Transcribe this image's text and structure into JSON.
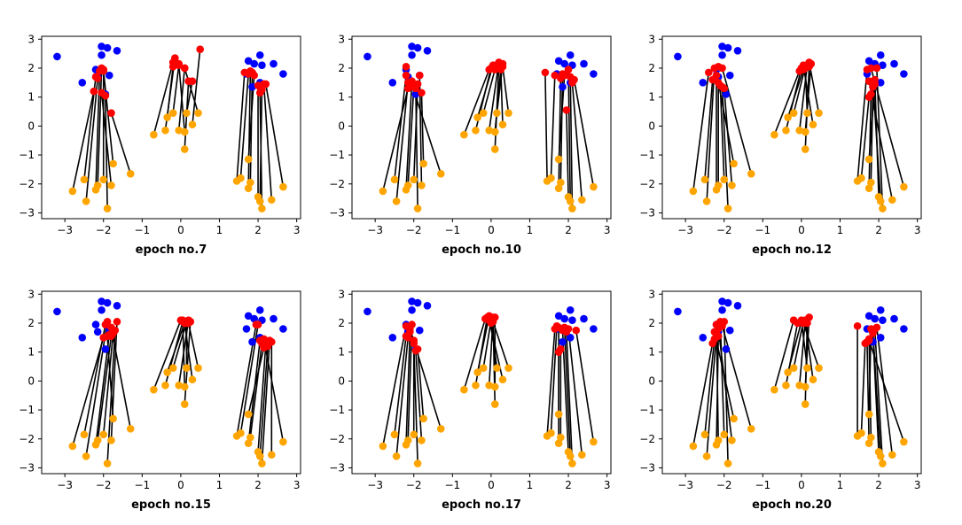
{
  "colors": {
    "source": "#0000ff",
    "start": "#ffa500",
    "moved": "#ff0000",
    "link": "#000000"
  },
  "chart_data": {
    "type": "scatter",
    "xlim": [
      -3.6,
      3.1
    ],
    "ylim": [
      -3.2,
      3.1
    ],
    "xticks": [
      -3,
      -2,
      -1,
      0,
      1,
      2,
      3
    ],
    "yticks": [
      -3,
      -2,
      -1,
      0,
      1,
      2,
      3
    ],
    "source_points": [
      [
        -3.2,
        2.4
      ],
      [
        -2.55,
        1.5
      ],
      [
        -2.2,
        1.95
      ],
      [
        -2.05,
        2.75
      ],
      [
        -1.9,
        2.7
      ],
      [
        -1.65,
        2.6
      ],
      [
        -2.05,
        2.45
      ],
      [
        -1.95,
        1.1
      ],
      [
        -1.85,
        1.75
      ],
      [
        -2.15,
        1.7
      ],
      [
        1.7,
        1.8
      ],
      [
        1.75,
        2.25
      ],
      [
        1.9,
        2.15
      ],
      [
        2.05,
        2.45
      ],
      [
        2.1,
        2.1
      ],
      [
        2.4,
        2.15
      ],
      [
        2.65,
        1.8
      ],
      [
        1.85,
        1.35
      ],
      [
        2.05,
        1.5
      ]
    ],
    "start_points": [
      [
        -2.8,
        -2.25
      ],
      [
        -2.5,
        -1.85
      ],
      [
        -2.45,
        -2.6
      ],
      [
        -2.2,
        -2.2
      ],
      [
        -2.15,
        -2.05
      ],
      [
        -2.0,
        -1.85
      ],
      [
        -1.9,
        -2.85
      ],
      [
        -1.8,
        -2.05
      ],
      [
        -1.75,
        -1.3
      ],
      [
        -1.3,
        -1.65
      ],
      [
        -0.7,
        -0.3
      ],
      [
        -0.4,
        -0.15
      ],
      [
        -0.35,
        0.3
      ],
      [
        -0.2,
        0.45
      ],
      [
        -0.05,
        -0.15
      ],
      [
        0.1,
        -0.8
      ],
      [
        0.1,
        -0.2
      ],
      [
        0.15,
        0.45
      ],
      [
        0.3,
        0.05
      ],
      [
        0.45,
        0.45
      ],
      [
        1.45,
        -1.9
      ],
      [
        1.55,
        -1.8
      ],
      [
        1.75,
        -2.15
      ],
      [
        1.8,
        -1.95
      ],
      [
        1.75,
        -1.15
      ],
      [
        2.0,
        -2.45
      ],
      [
        2.05,
        -2.6
      ],
      [
        2.1,
        -2.85
      ],
      [
        2.35,
        -2.55
      ],
      [
        2.65,
        -2.1
      ]
    ],
    "subplots": [
      {
        "title": "epoch no.7",
        "moved_points": [
          [
            -2.25,
            1.2
          ],
          [
            -2.2,
            1.7
          ],
          [
            -2.15,
            1.65
          ],
          [
            -2.1,
            1.9
          ],
          [
            -2.05,
            2.0
          ],
          [
            -2.0,
            1.95
          ],
          [
            -1.95,
            1.05
          ],
          [
            -2.05,
            1.15
          ],
          [
            -2.0,
            1.9
          ],
          [
            -1.8,
            0.45
          ],
          [
            -0.2,
            2.2
          ],
          [
            -0.15,
            2.35
          ],
          [
            -0.2,
            2.05
          ],
          [
            -0.05,
            2.1
          ],
          [
            0.1,
            2.0
          ],
          [
            0.2,
            1.55
          ],
          [
            -0.05,
            2.15
          ],
          [
            0.3,
            1.55
          ],
          [
            0.5,
            2.65
          ],
          [
            0.1,
            2.0
          ],
          [
            1.65,
            1.85
          ],
          [
            1.75,
            1.8
          ],
          [
            1.8,
            1.9
          ],
          [
            1.85,
            1.85
          ],
          [
            1.9,
            1.75
          ],
          [
            2.0,
            1.4
          ],
          [
            2.1,
            1.25
          ],
          [
            2.05,
            1.15
          ],
          [
            2.15,
            1.45
          ],
          [
            2.2,
            1.45
          ]
        ]
      },
      {
        "title": "epoch no.10",
        "moved_points": [
          [
            -2.15,
            1.3
          ],
          [
            -2.2,
            1.75
          ],
          [
            -2.15,
            1.5
          ],
          [
            -2.05,
            1.55
          ],
          [
            -2.0,
            1.35
          ],
          [
            -1.9,
            1.45
          ],
          [
            -1.95,
            1.3
          ],
          [
            -1.85,
            1.75
          ],
          [
            -1.8,
            1.15
          ],
          [
            -2.2,
            2.05
          ],
          [
            -0.05,
            1.95
          ],
          [
            0.0,
            2.0
          ],
          [
            0.05,
            2.1
          ],
          [
            0.1,
            1.95
          ],
          [
            0.2,
            2.2
          ],
          [
            0.2,
            2.05
          ],
          [
            0.25,
            1.95
          ],
          [
            0.3,
            2.15
          ],
          [
            0.25,
            2.0
          ],
          [
            0.3,
            2.05
          ],
          [
            1.4,
            1.85
          ],
          [
            1.65,
            1.75
          ],
          [
            1.8,
            1.65
          ],
          [
            1.85,
            1.8
          ],
          [
            1.9,
            1.75
          ],
          [
            1.95,
            0.55
          ],
          [
            2.0,
            1.95
          ],
          [
            2.05,
            1.7
          ],
          [
            2.1,
            1.5
          ],
          [
            2.15,
            1.6
          ]
        ]
      },
      {
        "title": "epoch no.12",
        "moved_points": [
          [
            -2.4,
            1.85
          ],
          [
            -2.3,
            1.6
          ],
          [
            -2.25,
            2.0
          ],
          [
            -2.2,
            1.75
          ],
          [
            -2.15,
            2.05
          ],
          [
            -2.1,
            1.4
          ],
          [
            -2.05,
            1.35
          ],
          [
            -2.0,
            1.3
          ],
          [
            -2.15,
            1.5
          ],
          [
            -2.05,
            2.0
          ],
          [
            -0.05,
            1.9
          ],
          [
            0.0,
            2.0
          ],
          [
            0.05,
            1.95
          ],
          [
            0.1,
            2.05
          ],
          [
            0.15,
            2.1
          ],
          [
            0.2,
            2.05
          ],
          [
            0.25,
            2.15
          ],
          [
            0.1,
            2.0
          ],
          [
            0.05,
            2.1
          ],
          [
            0.2,
            2.2
          ],
          [
            1.7,
            1.95
          ],
          [
            1.75,
            1.0
          ],
          [
            1.8,
            1.1
          ],
          [
            1.85,
            1.35
          ],
          [
            1.9,
            1.45
          ],
          [
            1.9,
            1.6
          ],
          [
            1.85,
            1.55
          ],
          [
            1.95,
            2.0
          ],
          [
            1.75,
            1.55
          ],
          [
            1.8,
            2.0
          ]
        ]
      },
      {
        "title": "epoch no.15",
        "moved_points": [
          [
            -2.0,
            1.5
          ],
          [
            -1.95,
            1.95
          ],
          [
            -1.9,
            2.05
          ],
          [
            -1.85,
            1.6
          ],
          [
            -1.8,
            1.55
          ],
          [
            -1.75,
            1.65
          ],
          [
            -1.7,
            1.75
          ],
          [
            -1.65,
            2.05
          ],
          [
            -1.9,
            1.55
          ],
          [
            -1.8,
            1.85
          ],
          [
            0.0,
            2.1
          ],
          [
            0.05,
            2.05
          ],
          [
            0.1,
            2.0
          ],
          [
            0.15,
            2.05
          ],
          [
            0.2,
            2.1
          ],
          [
            0.25,
            2.05
          ],
          [
            0.05,
            2.1
          ],
          [
            0.15,
            2.0
          ],
          [
            0.1,
            2.0
          ],
          [
            0.2,
            2.0
          ],
          [
            1.95,
            1.95
          ],
          [
            2.0,
            1.95
          ],
          [
            2.05,
            1.4
          ],
          [
            2.1,
            1.3
          ],
          [
            2.15,
            1.15
          ],
          [
            2.2,
            1.25
          ],
          [
            2.25,
            1.2
          ],
          [
            2.3,
            1.4
          ],
          [
            2.35,
            1.35
          ],
          [
            2.15,
            1.45
          ]
        ]
      },
      {
        "title": "epoch no.17",
        "moved_points": [
          [
            -2.2,
            1.9
          ],
          [
            -2.2,
            1.55
          ],
          [
            -2.15,
            1.5
          ],
          [
            -2.1,
            1.7
          ],
          [
            -2.05,
            1.95
          ],
          [
            -2.0,
            1.4
          ],
          [
            -2.0,
            1.3
          ],
          [
            -1.95,
            1.05
          ],
          [
            -1.9,
            1.1
          ],
          [
            -2.1,
            1.8
          ],
          [
            -0.15,
            2.15
          ],
          [
            -0.1,
            2.2
          ],
          [
            -0.05,
            2.25
          ],
          [
            0.0,
            2.1
          ],
          [
            0.05,
            2.2
          ],
          [
            0.05,
            2.15
          ],
          [
            0.1,
            2.2
          ],
          [
            0.0,
            2.0
          ],
          [
            -0.05,
            2.1
          ],
          [
            0.05,
            2.05
          ],
          [
            1.65,
            1.8
          ],
          [
            1.7,
            1.9
          ],
          [
            1.75,
            1.85
          ],
          [
            1.8,
            1.1
          ],
          [
            1.75,
            1.0
          ],
          [
            1.85,
            1.75
          ],
          [
            1.9,
            1.85
          ],
          [
            1.95,
            1.7
          ],
          [
            2.0,
            1.8
          ],
          [
            2.2,
            1.75
          ]
        ]
      },
      {
        "title": "epoch no.20",
        "moved_points": [
          [
            -2.3,
            1.3
          ],
          [
            -2.25,
            1.45
          ],
          [
            -2.2,
            1.6
          ],
          [
            -2.15,
            1.55
          ],
          [
            -2.2,
            1.95
          ],
          [
            -2.1,
            2.05
          ],
          [
            -2.0,
            2.05
          ],
          [
            -2.15,
            1.8
          ],
          [
            -2.25,
            1.7
          ],
          [
            -2.05,
            1.9
          ],
          [
            -0.2,
            2.1
          ],
          [
            -0.1,
            2.0
          ],
          [
            0.0,
            2.05
          ],
          [
            0.05,
            2.05
          ],
          [
            0.1,
            2.1
          ],
          [
            0.15,
            2.0
          ],
          [
            0.2,
            2.2
          ],
          [
            0.0,
            2.1
          ],
          [
            0.1,
            2.05
          ],
          [
            0.05,
            2.0
          ],
          [
            1.45,
            1.9
          ],
          [
            1.65,
            1.3
          ],
          [
            1.7,
            1.35
          ],
          [
            1.75,
            1.45
          ],
          [
            1.8,
            1.8
          ],
          [
            1.85,
            1.65
          ],
          [
            1.85,
            1.75
          ],
          [
            1.9,
            1.8
          ],
          [
            1.95,
            1.85
          ],
          [
            1.75,
            1.4
          ]
        ]
      }
    ]
  }
}
